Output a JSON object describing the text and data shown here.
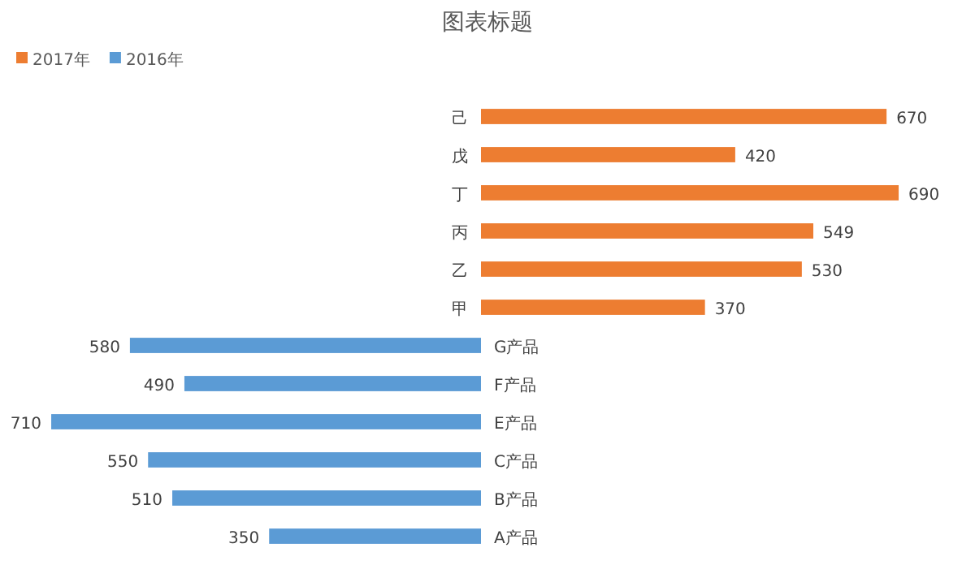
{
  "chart_data": [
    {
      "type": "bar",
      "orientation": "horizontal",
      "title": "图表标题",
      "categories": [
        "己",
        "戊",
        "丁",
        "丙",
        "乙",
        "甲"
      ],
      "series": [
        {
          "name": "2017年",
          "color": "#ed7d31",
          "values": [
            670,
            420,
            690,
            549,
            530,
            370
          ]
        }
      ],
      "xlim": [
        0,
        690
      ],
      "tick_labels": "y",
      "data_labels": true,
      "legend": "top left"
    },
    {
      "type": "bar",
      "orientation": "horizontal",
      "categories": [
        "G产品",
        "F产品",
        "E产品",
        "C产品",
        "B产品",
        "A产品"
      ],
      "series": [
        {
          "name": "2016年",
          "color": "#5b9bd5",
          "values": [
            580,
            490,
            710,
            550,
            510,
            350
          ]
        }
      ],
      "xlim": [
        710,
        0
      ],
      "tick_labels": "y",
      "data_labels": true,
      "legend": "top left"
    }
  ]
}
